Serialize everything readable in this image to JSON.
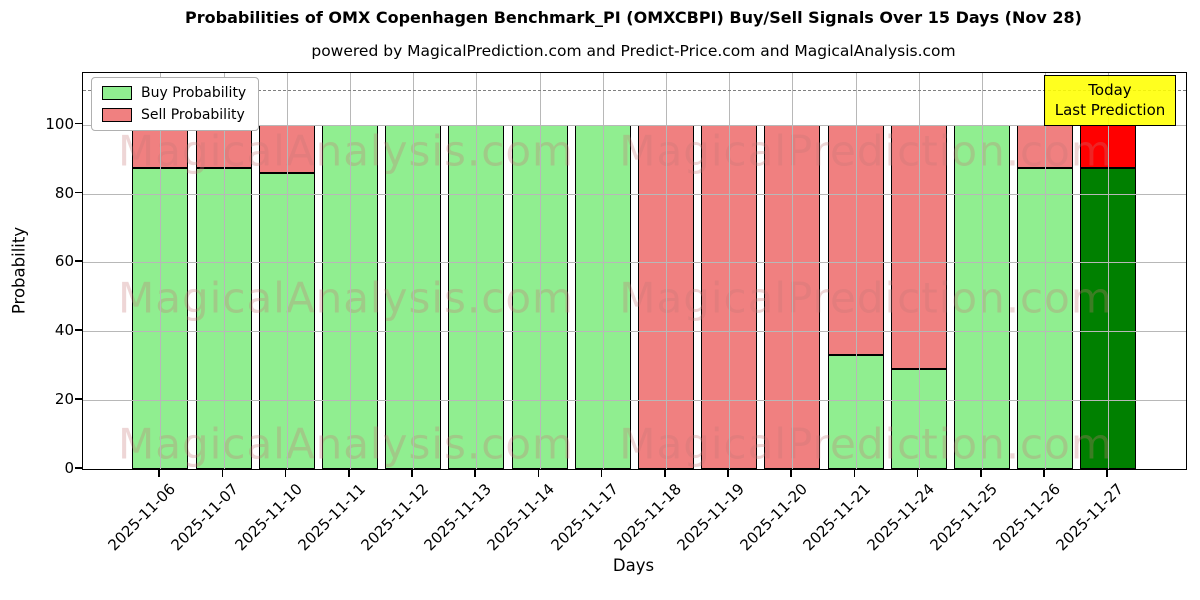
{
  "title": "Probabilities of OMX Copenhagen Benchmark_PI (OMXCBPI) Buy/Sell Signals Over 15 Days (Nov 28)",
  "subtitle": "powered by MagicalPrediction.com and Predict-Price.com and MagicalAnalysis.com",
  "legend": {
    "buy_label": "Buy Probability",
    "sell_label": "Sell Probability"
  },
  "annotation": {
    "line1": "Today",
    "line2": "Last Prediction"
  },
  "axes": {
    "xlabel": "Days",
    "ylabel": "Probability",
    "yticks": [
      0,
      20,
      40,
      60,
      80,
      100
    ],
    "ylim": [
      0,
      115
    ],
    "dashed_line_y": 110,
    "grid": true
  },
  "watermarks": {
    "left_text": "MagicalAnalysis.com",
    "right_text": "MagicalPrediction.com",
    "color": "rgba(200,120,120,0.30)"
  },
  "colors": {
    "buy": "#90ee90",
    "sell": "#f08080",
    "today_buy": "#008000",
    "today_sell": "#ff0000",
    "bar_edge": "#000000",
    "grid": "#b8b8b8",
    "dashed_line": "#7f7f7f",
    "annotation_bg": "#ffff00",
    "legend_border": "#b0b0b0"
  },
  "chart_data": {
    "type": "bar",
    "stacked": true,
    "title": "Probabilities of OMX Copenhagen Benchmark_PI (OMXCBPI) Buy/Sell Signals Over 15 Days (Nov 28)",
    "xlabel": "Days",
    "ylabel": "Probability",
    "ylim": [
      0,
      115
    ],
    "threshold_dashed_line": 110,
    "legend_position": "upper left",
    "categories": [
      "2025-11-06",
      "2025-11-07",
      "2025-11-10",
      "2025-11-11",
      "2025-11-12",
      "2025-11-13",
      "2025-11-14",
      "2025-11-17",
      "2025-11-18",
      "2025-11-19",
      "2025-11-20",
      "2025-11-21",
      "2025-11-24",
      "2025-11-25",
      "2025-11-26",
      "2025-11-27"
    ],
    "series": [
      {
        "name": "Buy Probability",
        "values": [
          87.5,
          87.5,
          86,
          100,
          100,
          100,
          100,
          100,
          0,
          0,
          0,
          33,
          29,
          100,
          87.5,
          87.5
        ]
      },
      {
        "name": "Sell Probability",
        "values": [
          12.5,
          12.5,
          14,
          0,
          0,
          0,
          0,
          0,
          100,
          100,
          100,
          67,
          71,
          0,
          12.5,
          12.5
        ]
      }
    ],
    "today_index": 15,
    "today_label": "Today\nLast Prediction"
  }
}
